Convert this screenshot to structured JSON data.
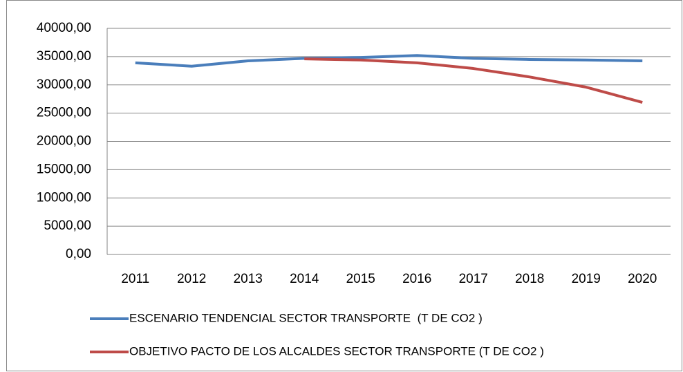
{
  "chart_data": {
    "type": "line",
    "categories": [
      "2011",
      "2012",
      "2013",
      "2014",
      "2015",
      "2016",
      "2017",
      "2018",
      "2019",
      "2020"
    ],
    "series": [
      {
        "name": "ESCENARIO TENDENCIAL SECTOR TRANSPORTE  (T DE CO2 )",
        "color": "#4a7ebb",
        "values": [
          33900,
          33300,
          34250,
          34700,
          34850,
          35200,
          34700,
          34500,
          34400,
          34250
        ]
      },
      {
        "name": "OBJETIVO PACTO DE LOS ALCALDES SECTOR TRANSPORTE (T DE CO2 )",
        "color": "#be4b48",
        "values": [
          null,
          null,
          null,
          34600,
          34400,
          33900,
          32900,
          31400,
          29600,
          26900
        ]
      }
    ],
    "ylim": [
      0,
      40000
    ],
    "yticks": [
      {
        "value": 0,
        "label": "0,00"
      },
      {
        "value": 5000,
        "label": "5000,00"
      },
      {
        "value": 10000,
        "label": "10000,00"
      },
      {
        "value": 15000,
        "label": "15000,00"
      },
      {
        "value": 20000,
        "label": "20000,00"
      },
      {
        "value": 25000,
        "label": "25000,00"
      },
      {
        "value": 30000,
        "label": "30000,00"
      },
      {
        "value": 35000,
        "label": "35000,00"
      },
      {
        "value": 40000,
        "label": "40000,00"
      }
    ],
    "grid": true,
    "legend": "bottom"
  }
}
